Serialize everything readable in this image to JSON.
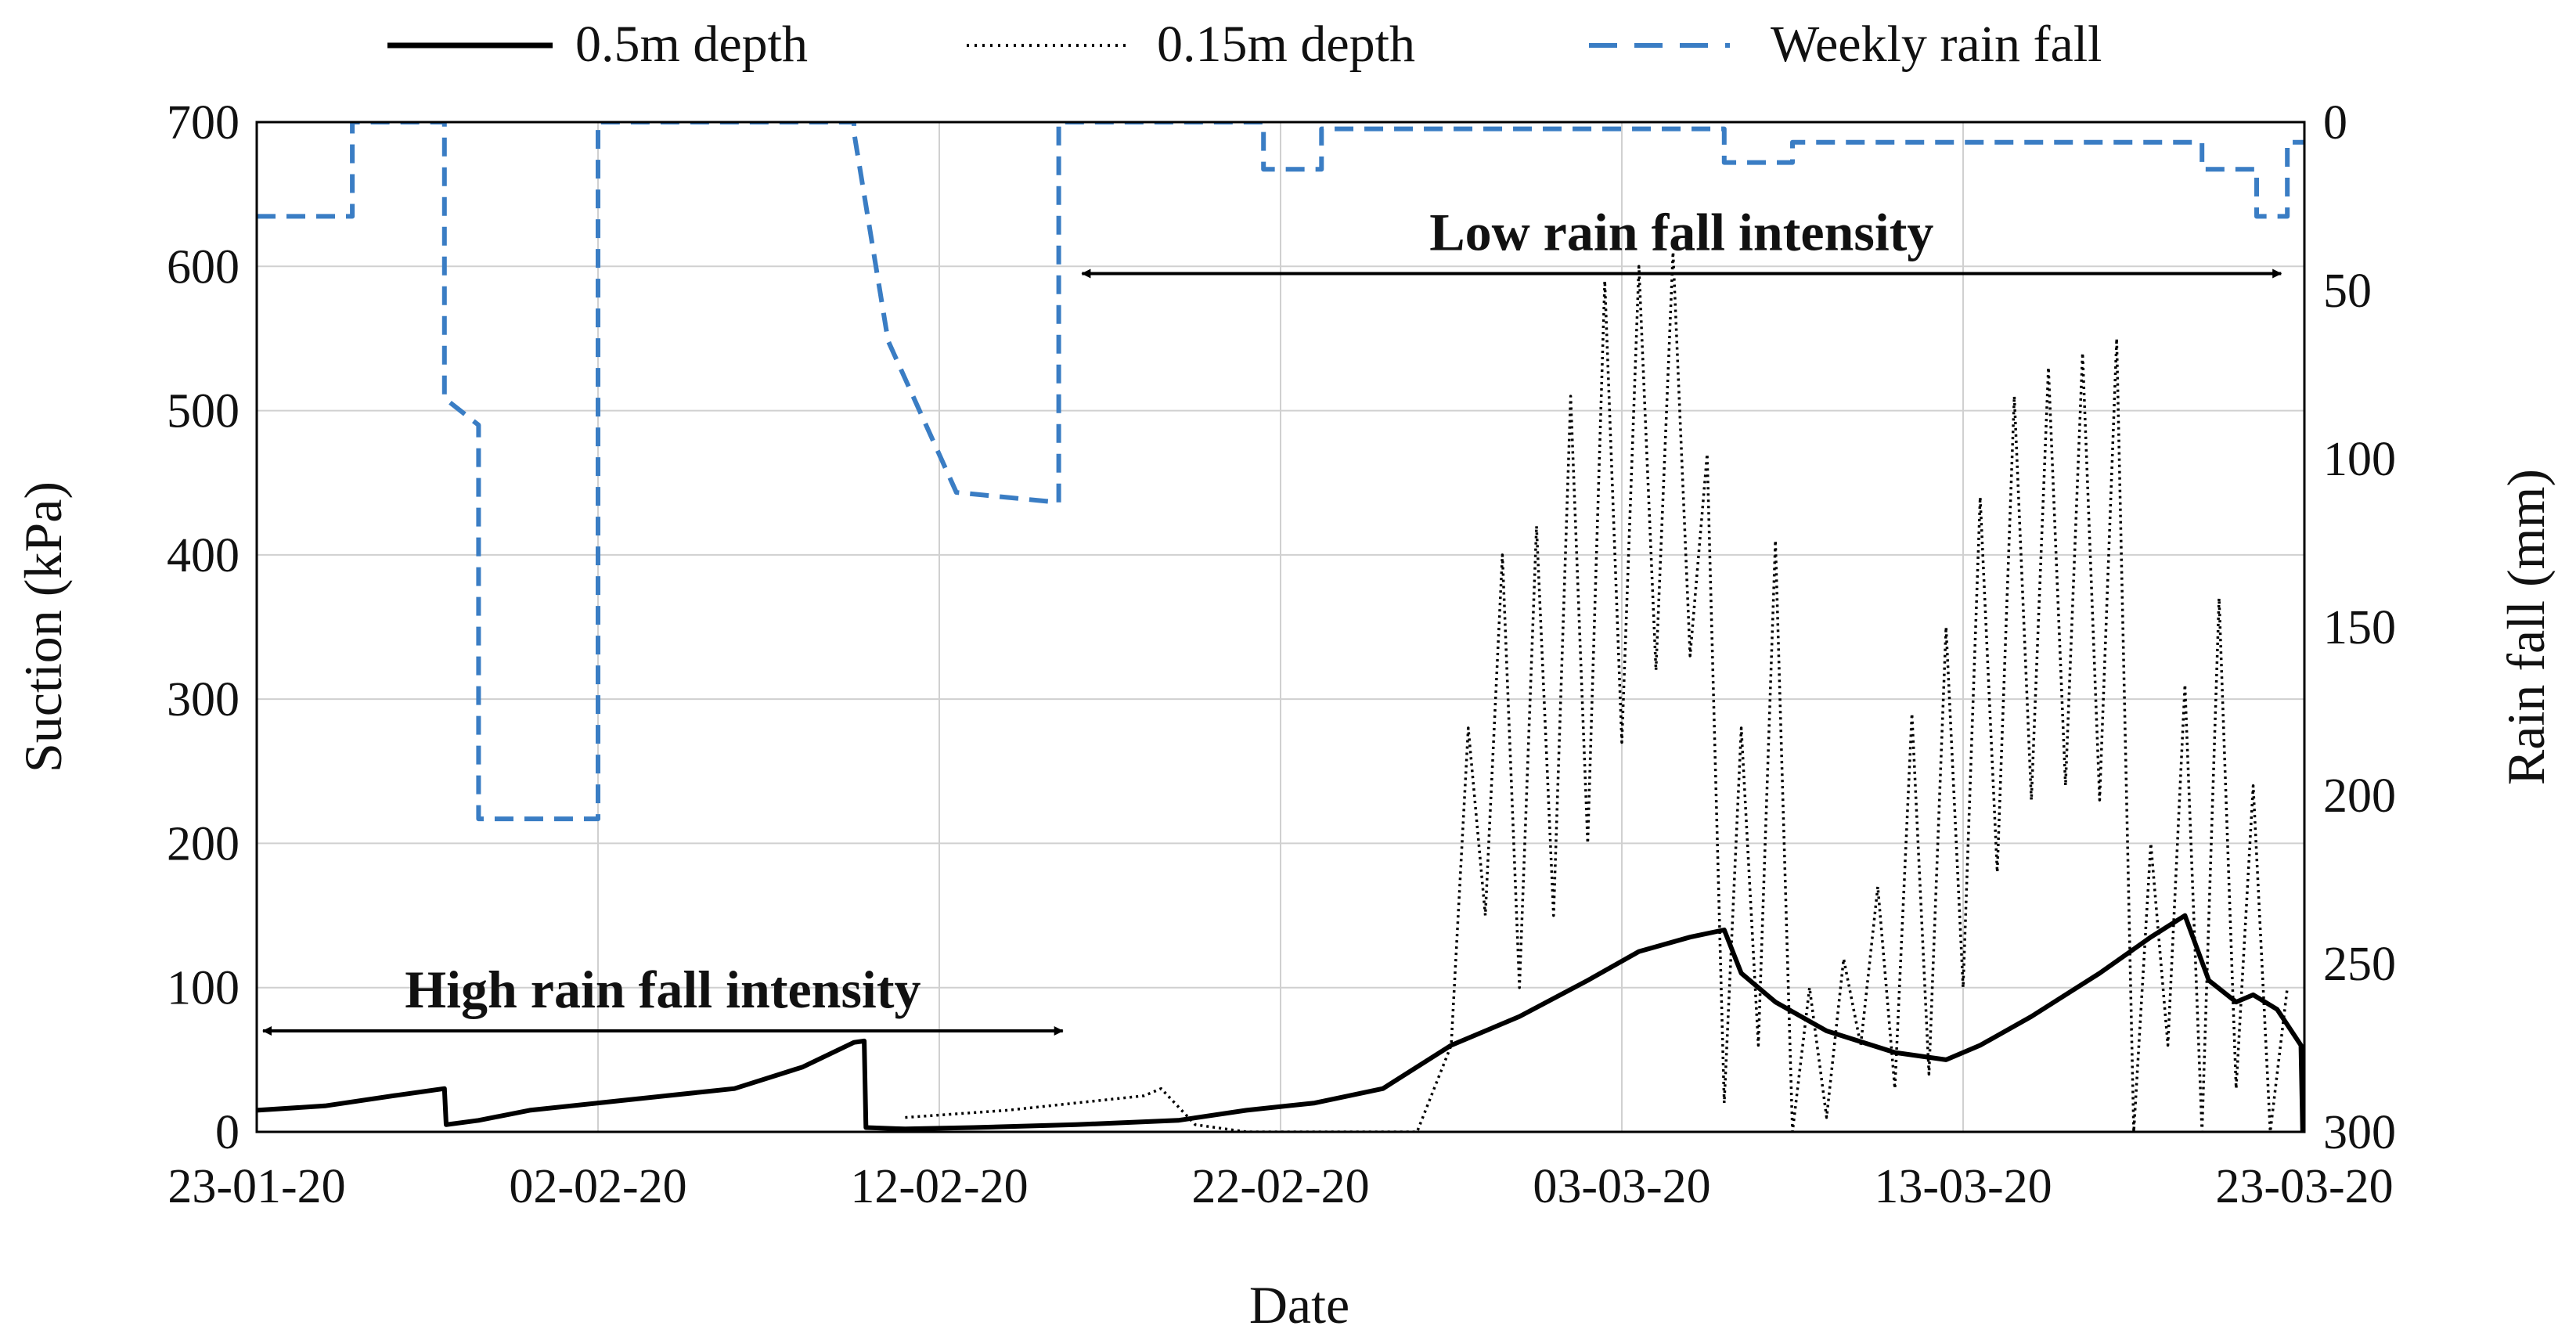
{
  "chart_data": {
    "type": "line",
    "xlabel": "Date",
    "ylabel": "Suction (kPa)",
    "y2label": "Rain fall (mm)",
    "xlim_days": [
      0,
      60
    ],
    "ylim": [
      0,
      700
    ],
    "y2lim": [
      0,
      300
    ],
    "y2_inverted": true,
    "grid": true,
    "legend_position": "top",
    "x_ticks": [
      {
        "day": 0,
        "label": "23-01-20"
      },
      {
        "day": 10,
        "label": "02-02-20"
      },
      {
        "day": 20,
        "label": "12-02-20"
      },
      {
        "day": 30,
        "label": "22-02-20"
      },
      {
        "day": 40,
        "label": "03-03-20"
      },
      {
        "day": 50,
        "label": "13-03-20"
      },
      {
        "day": 60,
        "label": "23-03-20"
      }
    ],
    "y_ticks": [
      "0",
      "100",
      "200",
      "300",
      "400",
      "500",
      "600",
      "700"
    ],
    "y2_ticks": [
      "0",
      "50",
      "100",
      "150",
      "200",
      "250",
      "300"
    ],
    "series": [
      {
        "name": "0.5m depth",
        "style": "solid",
        "color": "#000000",
        "x": [
          0,
          2,
          4,
          5.5,
          5.55,
          6.5,
          8,
          10,
          12,
          14,
          16,
          17.5,
          17.8,
          17.85,
          19,
          21,
          24,
          27,
          29,
          31,
          33,
          35,
          37,
          39,
          40.5,
          42,
          43,
          43.5,
          44.5,
          46,
          48,
          49.5,
          50.5,
          52,
          54,
          55.5,
          56.5,
          57.2,
          58,
          58.5,
          59.2,
          59.9,
          59.95
        ],
        "y": [
          15,
          18,
          25,
          30,
          5,
          8,
          15,
          20,
          25,
          30,
          45,
          62,
          63,
          3,
          2,
          3,
          5,
          8,
          15,
          20,
          30,
          60,
          80,
          105,
          125,
          135,
          140,
          110,
          90,
          70,
          55,
          50,
          60,
          80,
          110,
          135,
          150,
          105,
          90,
          95,
          85,
          60,
          0
        ]
      },
      {
        "name": "0.15m depth",
        "style": "dotted",
        "color": "#000000",
        "x": [
          19,
          22,
          24,
          26,
          26.5,
          27.5,
          29,
          31,
          33,
          34,
          35,
          35.5,
          36,
          36.5,
          37,
          37.5,
          38,
          38.5,
          39,
          39.5,
          40,
          40.5,
          41,
          41.5,
          42,
          42.5,
          43,
          43.5,
          44,
          44.5,
          45,
          45.5,
          46,
          46.5,
          47,
          47.5,
          48,
          48.5,
          49,
          49.5,
          50,
          50.5,
          51,
          51.5,
          52,
          52.5,
          53,
          53.5,
          54,
          54.5,
          55,
          55.5,
          56,
          56.5,
          57,
          57.5,
          58,
          58.5,
          59,
          59.5
        ],
        "y": [
          10,
          15,
          20,
          25,
          30,
          5,
          0,
          0,
          0,
          0,
          60,
          280,
          150,
          400,
          100,
          420,
          150,
          510,
          200,
          590,
          270,
          600,
          320,
          610,
          330,
          470,
          20,
          280,
          60,
          410,
          0,
          100,
          10,
          120,
          60,
          170,
          30,
          290,
          40,
          350,
          100,
          440,
          180,
          510,
          230,
          530,
          240,
          540,
          230,
          550,
          0,
          200,
          60,
          310,
          0,
          370,
          30,
          240,
          0,
          100
        ]
      },
      {
        "name": "Weekly rain fall",
        "style": "dashed",
        "color": "#3a7dc4",
        "axis": "right",
        "x": [
          0,
          2.8,
          2.8,
          5.5,
          5.5,
          6.5,
          6.5,
          10,
          10,
          17.5,
          17.5,
          18.5,
          18.5,
          20.5,
          20.5,
          23.5,
          23.5,
          29.5,
          29.5,
          31.2,
          31.2,
          43,
          43,
          45,
          45,
          57,
          57,
          58.6,
          58.6,
          59.5,
          59.5,
          60
        ],
        "y": [
          28,
          28,
          0,
          0,
          82,
          90,
          207,
          207,
          0,
          0,
          3,
          65,
          65,
          110,
          110,
          113,
          0,
          0,
          14,
          14,
          2,
          2,
          12,
          12,
          6,
          6,
          14,
          14,
          28,
          28,
          6,
          6
        ]
      }
    ],
    "annotations": [
      {
        "text": "High rain fall intensity",
        "x_range_days": [
          0,
          23.8
        ],
        "y": 70
      },
      {
        "text": "Low rain fall intensity",
        "x_range_days": [
          24,
          59.5
        ],
        "y": 595
      }
    ]
  }
}
